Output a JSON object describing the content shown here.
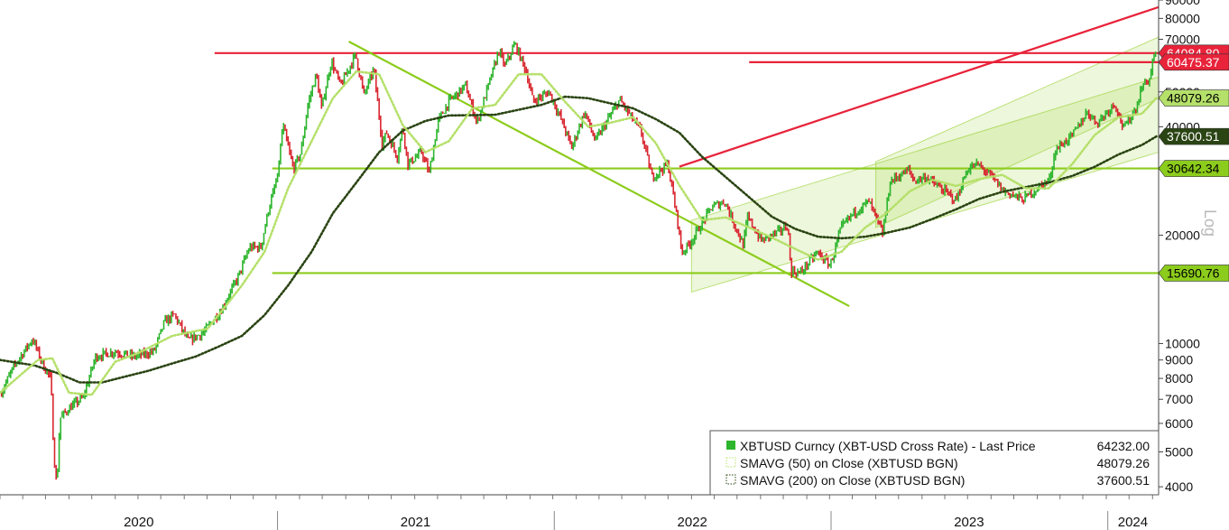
{
  "chart_data": {
    "type": "line",
    "instrument": "XBTUSD Curncy",
    "y_scale": "log",
    "y_scale_label": "Log",
    "ylim": [
      3800,
      90000
    ],
    "y_ticks": [
      {
        "value": 90000,
        "label": "90000"
      },
      {
        "value": 80000,
        "label": "80000"
      },
      {
        "value": 70000,
        "label": "70000"
      },
      {
        "value": 50000,
        "label": "50000"
      },
      {
        "value": 40000,
        "label": "40000"
      },
      {
        "value": 20000,
        "label": "20000"
      },
      {
        "value": 10000,
        "label": "10000"
      },
      {
        "value": 9000,
        "label": "9000"
      },
      {
        "value": 8000,
        "label": "8000"
      },
      {
        "value": 7000,
        "label": "7000"
      },
      {
        "value": 6000,
        "label": "6000"
      },
      {
        "value": 5000,
        "label": "5000"
      },
      {
        "value": 4000,
        "label": "4000"
      }
    ],
    "x_labels": [
      "2020",
      "2021",
      "2022",
      "2023",
      "2024"
    ],
    "x_range": [
      "2020-01-01",
      "2024-03-08"
    ],
    "price_series": [
      [
        "2020-01-01",
        7200
      ],
      [
        "2020-01-20",
        8700
      ],
      [
        "2020-02-13",
        10300
      ],
      [
        "2020-02-28",
        8600
      ],
      [
        "2020-03-08",
        8000
      ],
      [
        "2020-03-12",
        4900
      ],
      [
        "2020-03-16",
        4000
      ],
      [
        "2020-03-20",
        6200
      ],
      [
        "2020-04-01",
        6600
      ],
      [
        "2020-04-20",
        7100
      ],
      [
        "2020-05-06",
        9200
      ],
      [
        "2020-06-01",
        9500
      ],
      [
        "2020-06-25",
        9200
      ],
      [
        "2020-07-22",
        9500
      ],
      [
        "2020-08-05",
        11500
      ],
      [
        "2020-08-18",
        12000
      ],
      [
        "2020-09-05",
        10200
      ],
      [
        "2020-09-25",
        10700
      ],
      [
        "2020-10-20",
        12500
      ],
      [
        "2020-11-10",
        15300
      ],
      [
        "2020-11-25",
        18500
      ],
      [
        "2020-12-10",
        18500
      ],
      [
        "2020-12-20",
        23500
      ],
      [
        "2021-01-01",
        29000
      ],
      [
        "2021-01-08",
        40500
      ],
      [
        "2021-01-22",
        30500
      ],
      [
        "2021-02-01",
        34000
      ],
      [
        "2021-02-10",
        46000
      ],
      [
        "2021-02-21",
        56000
      ],
      [
        "2021-02-28",
        45000
      ],
      [
        "2021-03-13",
        61000
      ],
      [
        "2021-03-25",
        52000
      ],
      [
        "2021-04-14",
        63500
      ],
      [
        "2021-04-25",
        49000
      ],
      [
        "2021-05-08",
        58000
      ],
      [
        "2021-05-19",
        36000
      ],
      [
        "2021-05-25",
        38500
      ],
      [
        "2021-06-08",
        33000
      ],
      [
        "2021-06-15",
        40000
      ],
      [
        "2021-06-22",
        31500
      ],
      [
        "2021-07-10",
        34000
      ],
      [
        "2021-07-20",
        29800
      ],
      [
        "2021-08-01",
        41500
      ],
      [
        "2021-08-15",
        47000
      ],
      [
        "2021-09-06",
        52000
      ],
      [
        "2021-09-21",
        41000
      ],
      [
        "2021-10-01",
        48000
      ],
      [
        "2021-10-20",
        65000
      ],
      [
        "2021-10-28",
        59000
      ],
      [
        "2021-11-10",
        68000
      ],
      [
        "2021-11-25",
        57000
      ],
      [
        "2021-12-04",
        47000
      ],
      [
        "2021-12-25",
        50000
      ],
      [
        "2022-01-10",
        42000
      ],
      [
        "2022-01-24",
        35000
      ],
      [
        "2022-02-10",
        44000
      ],
      [
        "2022-02-24",
        36500
      ],
      [
        "2022-03-28",
        47500
      ],
      [
        "2022-04-25",
        39000
      ],
      [
        "2022-05-10",
        29000
      ],
      [
        "2022-05-31",
        31500
      ],
      [
        "2022-06-14",
        21000
      ],
      [
        "2022-06-18",
        17800
      ],
      [
        "2022-07-01",
        19300
      ],
      [
        "2022-07-28",
        24000
      ],
      [
        "2022-08-14",
        24800
      ],
      [
        "2022-09-07",
        18800
      ],
      [
        "2022-09-13",
        22400
      ],
      [
        "2022-10-01",
        19300
      ],
      [
        "2022-10-25",
        20500
      ],
      [
        "2022-11-05",
        21300
      ],
      [
        "2022-11-09",
        15900
      ],
      [
        "2022-11-21",
        15700
      ],
      [
        "2022-12-14",
        17900
      ],
      [
        "2022-12-31",
        16500
      ],
      [
        "2023-01-14",
        20900
      ],
      [
        "2023-01-31",
        23100
      ],
      [
        "2023-02-20",
        24800
      ],
      [
        "2023-03-10",
        20200
      ],
      [
        "2023-03-20",
        28200
      ],
      [
        "2023-04-14",
        30400
      ],
      [
        "2023-04-20",
        28300
      ],
      [
        "2023-05-06",
        29000
      ],
      [
        "2023-06-15",
        25000
      ],
      [
        "2023-06-30",
        30500
      ],
      [
        "2023-07-13",
        31500
      ],
      [
        "2023-07-31",
        29200
      ],
      [
        "2023-08-17",
        26500
      ],
      [
        "2023-09-11",
        25100
      ],
      [
        "2023-09-30",
        27000
      ],
      [
        "2023-10-16",
        28500
      ],
      [
        "2023-10-24",
        34500
      ],
      [
        "2023-11-15",
        37800
      ],
      [
        "2023-12-05",
        44000
      ],
      [
        "2023-12-18",
        41000
      ],
      [
        "2024-01-10",
        46500
      ],
      [
        "2024-01-22",
        39500
      ],
      [
        "2024-02-08",
        45500
      ],
      [
        "2024-02-15",
        52000
      ],
      [
        "2024-02-26",
        54500
      ],
      [
        "2024-02-28",
        60000
      ],
      [
        "2024-03-05",
        64232
      ]
    ],
    "sma50_series": [
      [
        "2020-01-01",
        7300
      ],
      [
        "2020-02-20",
        9000
      ],
      [
        "2020-03-10",
        9100
      ],
      [
        "2020-04-01",
        7300
      ],
      [
        "2020-05-01",
        7200
      ],
      [
        "2020-06-01",
        8900
      ],
      [
        "2020-07-01",
        9400
      ],
      [
        "2020-08-15",
        10500
      ],
      [
        "2020-10-01",
        11000
      ],
      [
        "2020-11-15",
        14500
      ],
      [
        "2020-12-15",
        18000
      ],
      [
        "2021-01-15",
        27000
      ],
      [
        "2021-02-15",
        36500
      ],
      [
        "2021-03-15",
        48000
      ],
      [
        "2021-04-15",
        57000
      ],
      [
        "2021-05-15",
        56000
      ],
      [
        "2021-06-15",
        40500
      ],
      [
        "2021-07-15",
        34000
      ],
      [
        "2021-08-15",
        36500
      ],
      [
        "2021-09-15",
        45000
      ],
      [
        "2021-10-15",
        46000
      ],
      [
        "2021-11-15",
        56000
      ],
      [
        "2021-12-15",
        56000
      ],
      [
        "2022-01-15",
        47000
      ],
      [
        "2022-02-15",
        40000
      ],
      [
        "2022-03-15",
        41000
      ],
      [
        "2022-04-15",
        42500
      ],
      [
        "2022-05-15",
        36000
      ],
      [
        "2022-06-15",
        27500
      ],
      [
        "2022-07-15",
        22000
      ],
      [
        "2022-08-15",
        22400
      ],
      [
        "2022-09-15",
        21000
      ],
      [
        "2022-10-15",
        19700
      ],
      [
        "2022-11-15",
        18300
      ],
      [
        "2022-12-15",
        17100
      ],
      [
        "2023-01-15",
        18000
      ],
      [
        "2023-02-15",
        21000
      ],
      [
        "2023-03-15",
        23000
      ],
      [
        "2023-04-15",
        26500
      ],
      [
        "2023-05-15",
        28500
      ],
      [
        "2023-06-15",
        27400
      ],
      [
        "2023-07-15",
        28600
      ],
      [
        "2023-08-15",
        29400
      ],
      [
        "2023-09-15",
        27000
      ],
      [
        "2023-10-15",
        27000
      ],
      [
        "2023-11-15",
        31500
      ],
      [
        "2023-12-15",
        38000
      ],
      [
        "2024-01-15",
        42500
      ],
      [
        "2024-02-15",
        43500
      ],
      [
        "2024-03-05",
        48079.26
      ]
    ],
    "sma200_series": [
      [
        "2020-01-01",
        9000
      ],
      [
        "2020-02-15",
        8700
      ],
      [
        "2020-03-15",
        8300
      ],
      [
        "2020-04-15",
        7800
      ],
      [
        "2020-05-15",
        7800
      ],
      [
        "2020-06-15",
        8100
      ],
      [
        "2020-07-15",
        8400
      ],
      [
        "2020-08-15",
        8800
      ],
      [
        "2020-09-15",
        9200
      ],
      [
        "2020-10-15",
        9800
      ],
      [
        "2020-11-15",
        10500
      ],
      [
        "2020-12-15",
        12000
      ],
      [
        "2021-01-15",
        14500
      ],
      [
        "2021-02-15",
        18000
      ],
      [
        "2021-03-15",
        23000
      ],
      [
        "2021-04-15",
        28000
      ],
      [
        "2021-05-15",
        34000
      ],
      [
        "2021-06-15",
        39000
      ],
      [
        "2021-07-15",
        41500
      ],
      [
        "2021-08-15",
        43000
      ],
      [
        "2021-10-15",
        43200
      ],
      [
        "2021-12-15",
        46000
      ],
      [
        "2022-01-15",
        48500
      ],
      [
        "2022-02-15",
        48000
      ],
      [
        "2022-03-15",
        46500
      ],
      [
        "2022-04-15",
        45000
      ],
      [
        "2022-05-15",
        42000
      ],
      [
        "2022-06-15",
        38500
      ],
      [
        "2022-07-15",
        33000
      ],
      [
        "2022-08-15",
        29000
      ],
      [
        "2022-09-15",
        25500
      ],
      [
        "2022-10-15",
        22500
      ],
      [
        "2022-11-15",
        20800
      ],
      [
        "2022-12-15",
        19800
      ],
      [
        "2023-01-15",
        19600
      ],
      [
        "2023-02-15",
        19800
      ],
      [
        "2023-03-15",
        20300
      ],
      [
        "2023-04-15",
        21000
      ],
      [
        "2023-05-15",
        22200
      ],
      [
        "2023-06-15",
        23600
      ],
      [
        "2023-07-15",
        25200
      ],
      [
        "2023-08-15",
        26400
      ],
      [
        "2023-09-15",
        27200
      ],
      [
        "2023-10-15",
        28000
      ],
      [
        "2023-11-15",
        29200
      ],
      [
        "2023-12-15",
        31000
      ],
      [
        "2024-01-15",
        33500
      ],
      [
        "2024-02-15",
        35600
      ],
      [
        "2024-03-05",
        37600.51
      ]
    ],
    "annotations": {
      "horizontal_levels": [
        {
          "value": 64084.8,
          "color": "#e8233a",
          "from": "2020-10-10"
        },
        {
          "value": 60475.37,
          "color": "#e8233a",
          "from": "2022-09-15"
        },
        {
          "value": 30642.34,
          "color": "#8ccc1c",
          "from": "2020-12-25"
        },
        {
          "value": 15690.76,
          "color": "#8ccc1c",
          "from": "2020-12-25"
        }
      ],
      "trendlines": [
        {
          "start": [
            "2021-04-05",
            69000
          ],
          "end": [
            "2023-01-25",
            12700
          ],
          "color": "#8ccc1c"
        },
        {
          "start": [
            "2022-06-15",
            31000
          ],
          "end": [
            "2024-03-08",
            86000
          ],
          "color": "#e8233a"
        }
      ],
      "channels": [
        {
          "upper": [
            [
              "2022-07-01",
              22000
            ],
            [
              "2024-03-08",
              55000
            ]
          ],
          "lower": [
            [
              "2022-07-01",
              13900
            ],
            [
              "2024-03-08",
              34000
            ]
          ]
        },
        {
          "upper": [
            [
              "2023-03-01",
              32000
            ],
            [
              "2024-03-08",
              71000
            ]
          ],
          "lower": [
            [
              "2023-03-01",
              21000
            ],
            [
              "2024-03-08",
              48000
            ]
          ]
        }
      ]
    },
    "price_badges": [
      {
        "label": "64084.80",
        "value": 64084.8,
        "bg": "#e8233a",
        "fg": "#ffffff"
      },
      {
        "label": "60475.37",
        "value": 60475.37,
        "bg": "#e8233a",
        "fg": "#ffffff"
      },
      {
        "label": "48079.26",
        "value": 48079.26,
        "bg": "#b5e06a",
        "fg": "#000000"
      },
      {
        "label": "37600.51",
        "value": 37600.51,
        "bg": "#2a4413",
        "fg": "#ffffff"
      },
      {
        "label": "30642.34",
        "value": 30642.34,
        "bg": "#8ccc1c",
        "fg": "#000000"
      },
      {
        "label": "15690.76",
        "value": 15690.76,
        "bg": "#8ccc1c",
        "fg": "#000000"
      }
    ],
    "legend": [
      {
        "label": "XBTUSD Curncy (XBT-USD Cross Rate) - Last Price",
        "value": "64232.00",
        "color": "#2db52d",
        "style": "candles"
      },
      {
        "label": "SMAVG (50)  on Close (XBTUSD BGN)",
        "value": "48079.26",
        "color": "#b5e06a",
        "style": "dotted"
      },
      {
        "label": "SMAVG (200)  on Close (XBTUSD BGN)",
        "value": "37600.51",
        "color": "#2a4413",
        "style": "dotted"
      }
    ],
    "colors": {
      "up": "#2db52d",
      "down": "#d8262f",
      "sma50": "#b5e06a",
      "sma200": "#2a4413",
      "support": "#8ccc1c",
      "resistance": "#e8233a",
      "channel_fill": "#8ccc1c"
    }
  }
}
